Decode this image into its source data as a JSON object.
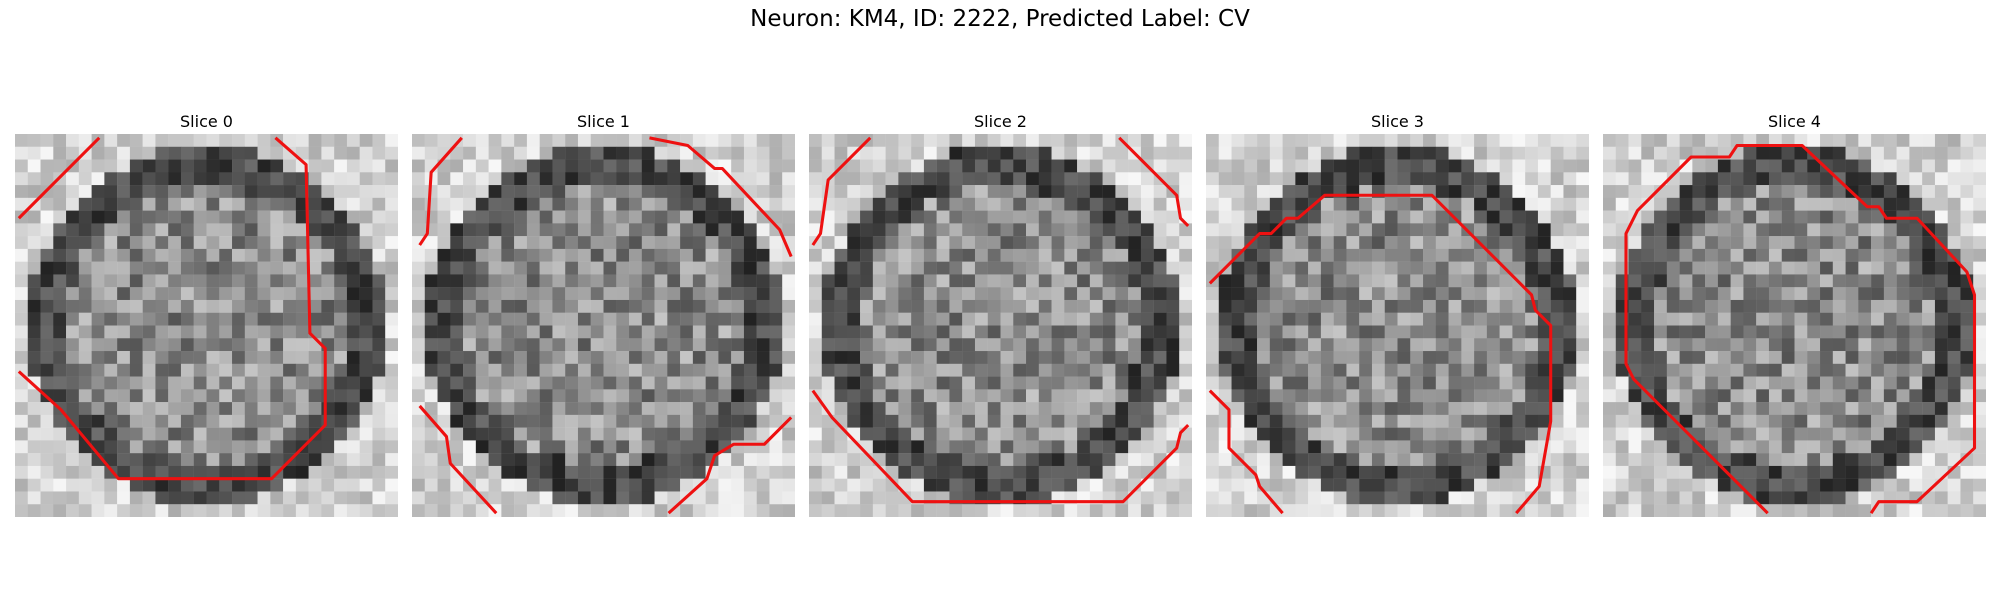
{
  "figure": {
    "suptitle": "Neuron: KM4, ID: 2222, Predicted Label: CV"
  },
  "panels": [
    {
      "title": "Slice 0",
      "seed": 11
    },
    {
      "title": "Slice 1",
      "seed": 23
    },
    {
      "title": "Slice 2",
      "seed": 37
    },
    {
      "title": "Slice 3",
      "seed": 51
    },
    {
      "title": "Slice 4",
      "seed": 67
    }
  ],
  "style": {
    "contour_color": "#ee1111",
    "image_colormap": "grayscale"
  }
}
